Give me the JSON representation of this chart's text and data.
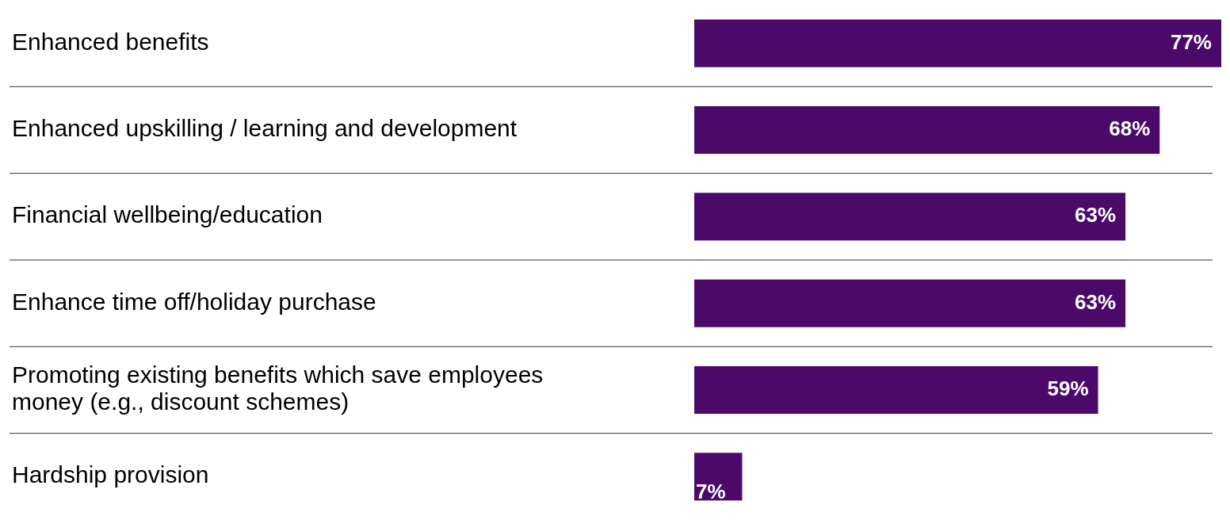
{
  "chart_data": {
    "type": "bar",
    "orientation": "horizontal",
    "categories": [
      "Enhanced benefits",
      "Enhanced upskilling / learning and development",
      "Financial wellbeing/education",
      "Enhance time off/holiday purchase",
      "Promoting existing benefits which save employees money (e.g., discount schemes)",
      "Hardship provision"
    ],
    "values": [
      77,
      68,
      63,
      63,
      59,
      7
    ],
    "value_labels": [
      "77%",
      "68%",
      "63%",
      "63%",
      "59%",
      "7%"
    ],
    "color": "#4b0a6a"
  }
}
